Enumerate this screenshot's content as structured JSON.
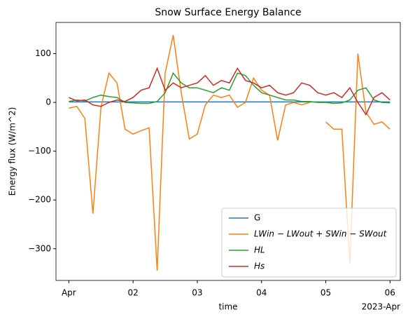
{
  "chart_data": {
    "type": "line",
    "title": "Snow Surface Energy Balance",
    "x_label": "time",
    "y_label": "Energy flux (W/m^2)",
    "x_offset_label": "2023-Apr",
    "x": [
      0,
      0.125,
      0.25,
      0.375,
      0.5,
      0.625,
      0.75,
      0.875,
      1,
      1.125,
      1.25,
      1.375,
      1.5,
      1.625,
      1.75,
      1.875,
      2,
      2.125,
      2.25,
      2.375,
      2.5,
      2.625,
      2.75,
      2.875,
      3,
      3.125,
      3.25,
      3.375,
      3.5,
      3.625,
      3.75,
      3.875,
      4,
      4.125,
      4.25,
      4.375,
      4.5,
      4.625,
      4.75,
      4.875,
      5
    ],
    "xlim": [
      -0.2,
      5.16
    ],
    "xticks": [
      {
        "value": 0,
        "label": "Apr"
      },
      {
        "value": 1,
        "label": "02"
      },
      {
        "value": 2,
        "label": "03"
      },
      {
        "value": 3,
        "label": "04"
      },
      {
        "value": 4,
        "label": "05"
      },
      {
        "value": 5,
        "label": "06"
      }
    ],
    "ylim": [
      -365,
      164
    ],
    "yticks": [
      {
        "value": -300,
        "label": "−300"
      },
      {
        "value": -200,
        "label": "−200"
      },
      {
        "value": -100,
        "label": "−100"
      },
      0,
      100
    ],
    "legend": "lower right",
    "series": [
      {
        "name": "G",
        "color": "#1f77b4",
        "values": [
          1,
          1,
          1,
          1,
          1,
          1,
          1,
          1,
          1,
          1,
          1,
          1,
          1,
          1,
          1,
          1,
          1,
          1,
          1,
          1,
          1,
          1,
          1,
          1,
          1,
          1,
          1,
          1,
          1,
          1,
          1,
          1,
          1,
          1,
          1,
          1,
          1,
          1,
          1,
          1,
          1
        ]
      },
      {
        "name": "LWin − LWout + SWin − SWout",
        "color": "#ff7f0e",
        "values": [
          -12,
          -8,
          -33,
          -228,
          -10,
          60,
          40,
          -55,
          -65,
          -58,
          -52,
          -345,
          60,
          138,
          20,
          -75,
          -65,
          -5,
          15,
          10,
          15,
          -10,
          0,
          50,
          25,
          15,
          -78,
          -5,
          0,
          -5,
          0,
          null,
          -40,
          -55,
          -55,
          -330,
          100,
          -20,
          -45,
          -40,
          -55
        ]
      },
      {
        "name": "HL",
        "color": "#2ca02c",
        "values": [
          2,
          5,
          3,
          10,
          15,
          12,
          10,
          0,
          -1,
          -2,
          -2,
          2,
          20,
          60,
          40,
          30,
          30,
          25,
          20,
          30,
          25,
          60,
          55,
          35,
          20,
          15,
          10,
          5,
          5,
          2,
          2,
          0,
          0,
          -2,
          -1,
          5,
          25,
          30,
          5,
          0,
          -1
        ]
      },
      {
        "name": "Hs",
        "color": "#d62728",
        "values": [
          10,
          3,
          5,
          -5,
          -8,
          0,
          5,
          2,
          10,
          25,
          30,
          70,
          25,
          40,
          30,
          35,
          40,
          55,
          35,
          45,
          40,
          70,
          45,
          40,
          30,
          35,
          20,
          15,
          20,
          40,
          35,
          20,
          15,
          20,
          10,
          30,
          0,
          -25,
          10,
          20,
          5
        ]
      }
    ]
  }
}
